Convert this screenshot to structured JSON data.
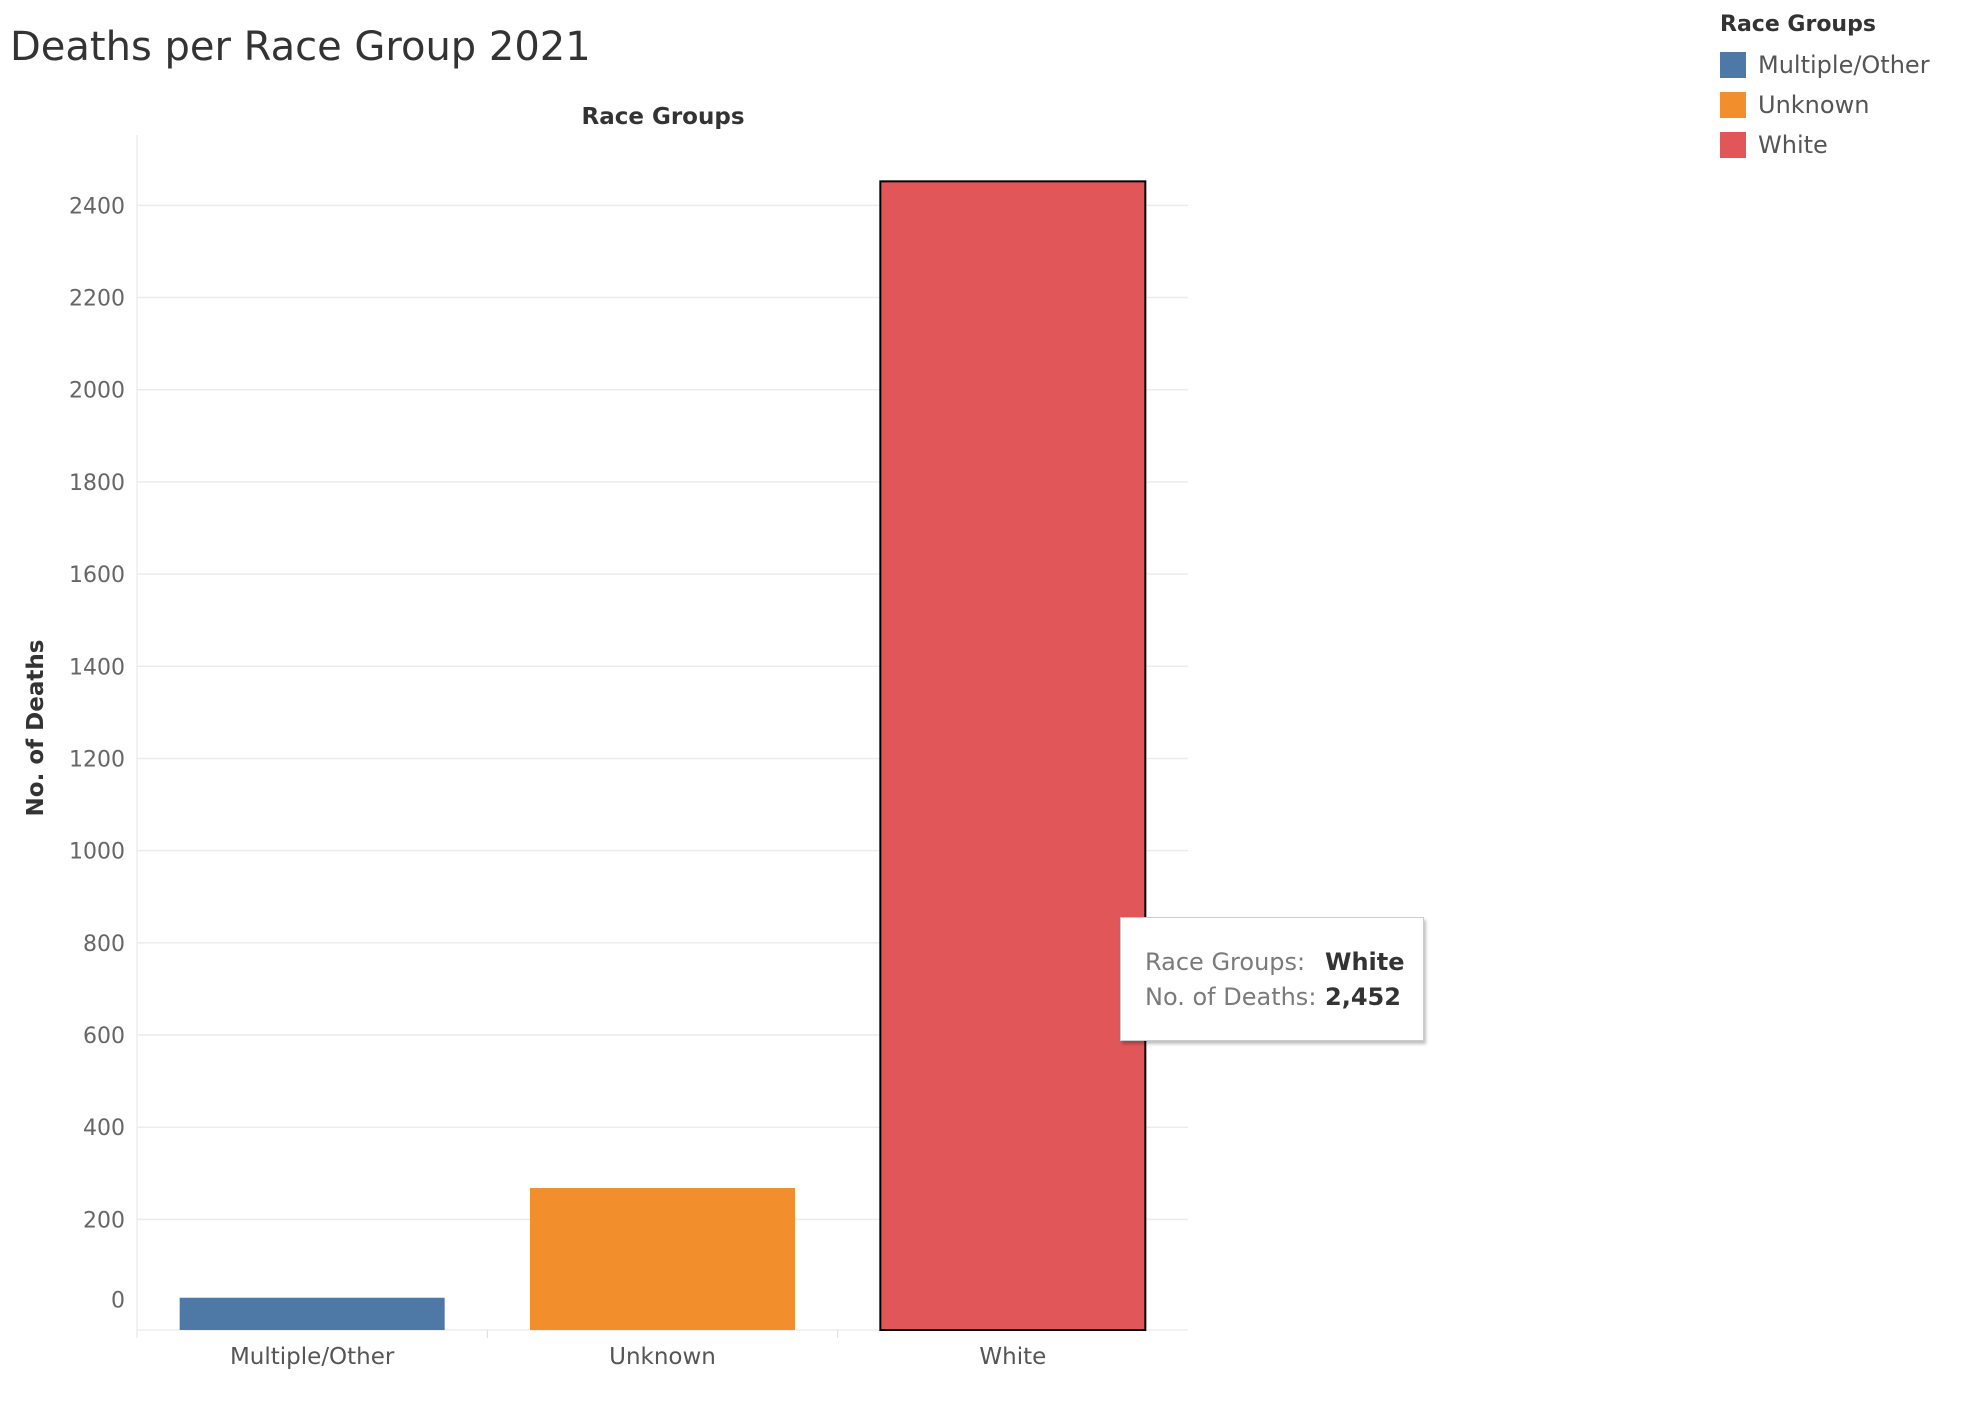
{
  "title": "Deaths per Race Group 2021",
  "legend": {
    "title": "Race Groups",
    "items": [
      {
        "label": "Multiple/Other",
        "color": "#4e79a7"
      },
      {
        "label": "Unknown",
        "color": "#f28e2b"
      },
      {
        "label": "White",
        "color": "#e15759"
      }
    ]
  },
  "tooltip": {
    "rows": [
      {
        "key": "Race Groups:",
        "value": "White"
      },
      {
        "key": "No. of Deaths:",
        "value": "2,452"
      }
    ]
  },
  "chart_data": {
    "type": "bar",
    "title": "Deaths per Race Group 2021",
    "xlabel": "Race Groups",
    "ylabel": "No. of Deaths",
    "categories": [
      "Multiple/Other",
      "Unknown",
      "White"
    ],
    "values": [
      30,
      268,
      2452
    ],
    "colors": [
      "#4e79a7",
      "#f28e2b",
      "#e15759"
    ],
    "highlighted": "White",
    "ylim": [
      -40,
      2520
    ],
    "yticks": [
      0,
      200,
      400,
      600,
      800,
      1000,
      1200,
      1400,
      1600,
      1800,
      2000,
      2200,
      2400
    ],
    "grid": true,
    "legend_position": "top-right"
  }
}
